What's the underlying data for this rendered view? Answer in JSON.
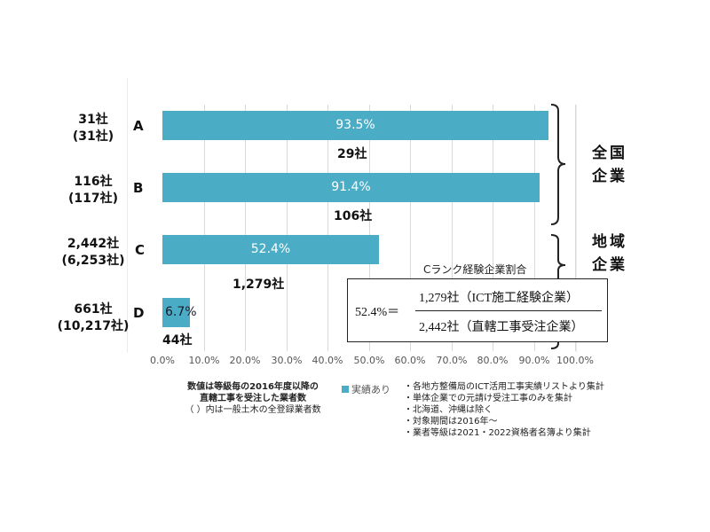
{
  "chart_data": {
    "type": "bar",
    "orientation": "horizontal",
    "categories": [
      "A",
      "B",
      "C",
      "D"
    ],
    "series": [
      {
        "name": "実績あり",
        "color": "#4bacc6",
        "values": [
          93.5,
          91.4,
          52.4,
          6.7
        ]
      }
    ],
    "value_labels": [
      "93.5%",
      "91.4%",
      "52.4%",
      "6.7%"
    ],
    "experienced_counts": [
      "29社",
      "106社",
      "1,279社",
      "44社"
    ],
    "direct_contract_counts": [
      "31社",
      "116社",
      "2,442社",
      "661社"
    ],
    "registered_counts": [
      "(31社)",
      "(117社)",
      "(6,253社)",
      "(10,217社)"
    ],
    "xlim": [
      0,
      100
    ],
    "x_ticks": [
      "0.0%",
      "10.0%",
      "20.0%",
      "30.0%",
      "40.0%",
      "50.0%",
      "60.0%",
      "70.0%",
      "80.0%",
      "90.0%",
      "100.0%"
    ],
    "grid": true,
    "legend": {
      "position": "bottom",
      "entries": [
        "実績あり"
      ]
    },
    "groups": [
      {
        "label_line1": "全国",
        "label_line2": "企業",
        "categories": [
          "A",
          "B"
        ]
      },
      {
        "label_line1": "地域",
        "label_line2": "企業",
        "categories": [
          "C",
          "D"
        ]
      }
    ],
    "annotation": {
      "title": "Cランク経験企業割合",
      "lhs": "52.4%＝",
      "numerator": "1,279社（ICT施工経験企業）",
      "denominator": "2,442社（直轄工事受注企業）"
    }
  },
  "notes": {
    "left_line1": "数値は等級毎の2016年度以降の",
    "left_line2": "直轄工事を受注した業者数",
    "left_line3": "（  ）内は一般土木の全登録業者数",
    "legend_label": "実績あり",
    "right": [
      "・各地方整備局のICT活用工事実績リストより集計",
      "・単体企業での元請け受注工事のみを集計",
      "・北海道、沖縄は除く",
      "・対象期間は2016年～",
      "・業者等級は2021・2022資格者名簿より集計"
    ]
  }
}
